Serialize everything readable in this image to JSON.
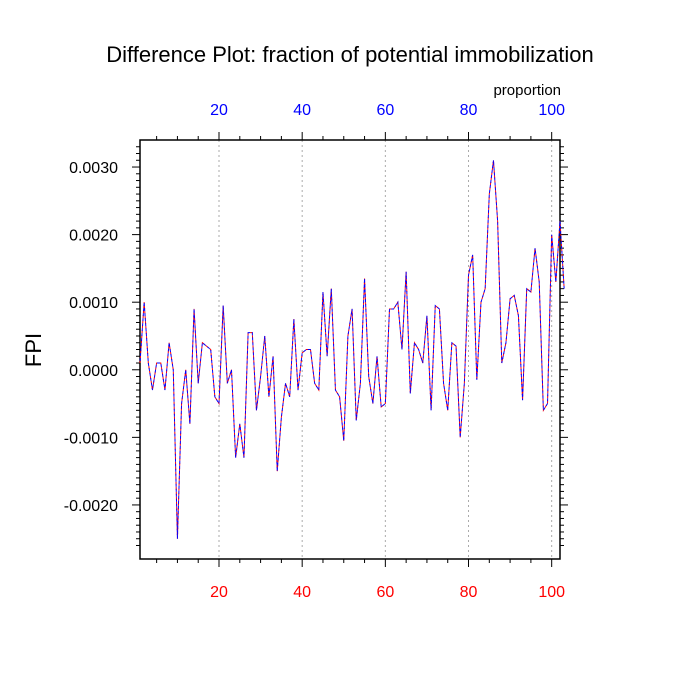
{
  "chart_data": {
    "type": "line",
    "title": "Difference Plot: fraction of potential immobilization",
    "ylabel": "FPI",
    "top_axis_label": "proportion",
    "xlim": [
      1,
      102
    ],
    "ylim": [
      -0.0028,
      0.0034
    ],
    "x_ticks": [
      20,
      40,
      60,
      80,
      100
    ],
    "y_ticks": [
      -0.002,
      -0.001,
      0.0,
      0.001,
      0.002,
      0.003
    ],
    "y_tick_labels": [
      "-0.0020",
      "-0.0010",
      "0.0000",
      "0.0010",
      "0.0020",
      "0.0030"
    ],
    "grid_x": [
      20,
      40,
      60,
      80,
      100
    ],
    "colors": {
      "bottom_tick_labels": "#ff0000",
      "top_tick_labels": "#0000ff",
      "series_a": "#ff0000",
      "series_b": "#0000ff",
      "grid": "#aaaaaa",
      "axis": "#000000"
    },
    "x_start": 1,
    "series": [
      {
        "name": "difference",
        "values": [
          0.0001,
          0.001,
          0.0001,
          -0.0003,
          0.0001,
          0.0001,
          -0.0003,
          0.0004,
          0.0,
          -0.0025,
          -0.0005,
          0.0,
          -0.0008,
          0.0009,
          -0.0002,
          0.0004,
          0.00035,
          0.0003,
          -0.0004,
          -0.0005,
          0.00095,
          -0.0002,
          0.0,
          -0.0013,
          -0.0008,
          -0.0013,
          0.00055,
          0.00055,
          -0.0006,
          -0.0001,
          0.0005,
          -0.0004,
          0.0002,
          -0.0015,
          -0.0007,
          -0.0002,
          -0.0004,
          0.00075,
          -0.0003,
          0.00025,
          0.0003,
          0.0003,
          -0.0002,
          -0.0003,
          0.00115,
          0.0002,
          0.0012,
          -0.0003,
          -0.0004,
          -0.00105,
          0.0005,
          0.0009,
          -0.00075,
          -0.0002,
          0.00135,
          -0.0001,
          -0.0005,
          0.0002,
          -0.00055,
          -0.0005,
          0.0009,
          0.0009,
          0.001,
          0.0003,
          0.00145,
          -0.00035,
          0.0004,
          0.0003,
          0.0001,
          0.0008,
          -0.0006,
          0.00095,
          0.0009,
          -0.0002,
          -0.0006,
          0.0004,
          0.00035,
          -0.001,
          -0.0002,
          0.0014,
          0.0017,
          -0.00015,
          0.001,
          0.0012,
          0.0026,
          0.0031,
          0.0022,
          0.0001,
          0.0004,
          0.00105,
          0.0011,
          0.0008,
          -0.00045,
          0.0012,
          0.00115,
          0.0018,
          0.0013,
          -0.0006,
          -0.0005,
          0.002,
          0.0013,
          0.0022,
          0.0012
        ]
      }
    ]
  }
}
